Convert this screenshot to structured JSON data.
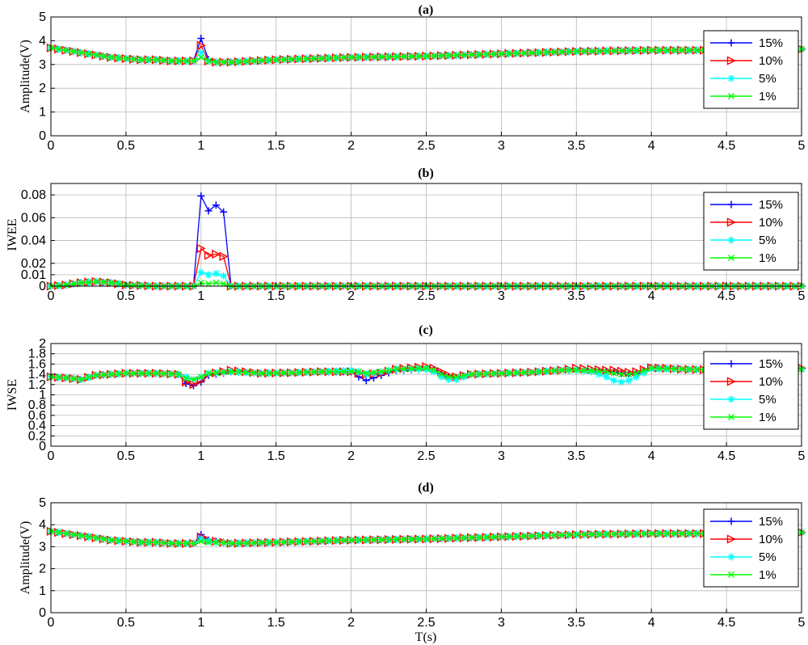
{
  "figure": {
    "xlabel": "T(s)",
    "xticks": [
      0,
      0.5,
      1,
      1.5,
      2,
      2.5,
      3,
      3.5,
      4,
      4.5,
      5
    ],
    "xtick_labels": [
      "0",
      "0.5",
      "1",
      "1.5",
      "2",
      "2.5",
      "3",
      "3.5",
      "4",
      "4.5",
      "5"
    ],
    "legend_labels": [
      "15%",
      "10%",
      "5%",
      "1%"
    ],
    "series_colors": [
      "#0000ff",
      "#ff0000",
      "#00ffff",
      "#00ff00"
    ],
    "series_markers": [
      "plus",
      "triangle-right",
      "asterisk",
      "x"
    ]
  },
  "chart_data": [
    {
      "type": "line",
      "title": "(a)",
      "xlabel": "",
      "ylabel": "Amplitude(V)",
      "xlim": [
        0,
        5
      ],
      "ylim": [
        0,
        5
      ],
      "yticks": [
        0,
        1,
        2,
        3,
        4,
        5
      ],
      "ytick_labels": [
        "0",
        "1",
        "2",
        "3",
        "4",
        "5"
      ],
      "grid": true,
      "legend": "top-right",
      "x": [
        0,
        0.1,
        0.2,
        0.3,
        0.4,
        0.5,
        0.6,
        0.7,
        0.8,
        0.9,
        0.95,
        1,
        1.05,
        1.1,
        1.2,
        1.5,
        2,
        2.5,
        3,
        3.5,
        4,
        4.5,
        5
      ],
      "series": [
        {
          "name": "15%",
          "values": [
            3.7,
            3.6,
            3.5,
            3.4,
            3.3,
            3.25,
            3.2,
            3.2,
            3.15,
            3.15,
            3.15,
            4.1,
            3.2,
            3.1,
            3.1,
            3.2,
            3.3,
            3.35,
            3.45,
            3.55,
            3.6,
            3.6,
            3.65
          ]
        },
        {
          "name": "10%",
          "values": [
            3.7,
            3.6,
            3.5,
            3.4,
            3.3,
            3.25,
            3.2,
            3.2,
            3.15,
            3.15,
            3.15,
            3.8,
            3.15,
            3.1,
            3.1,
            3.2,
            3.3,
            3.35,
            3.45,
            3.55,
            3.6,
            3.6,
            3.65
          ]
        },
        {
          "name": "5%",
          "values": [
            3.7,
            3.6,
            3.5,
            3.4,
            3.3,
            3.25,
            3.2,
            3.2,
            3.15,
            3.15,
            3.15,
            3.5,
            3.15,
            3.1,
            3.1,
            3.2,
            3.3,
            3.35,
            3.45,
            3.55,
            3.6,
            3.6,
            3.65
          ]
        },
        {
          "name": "1%",
          "values": [
            3.7,
            3.6,
            3.5,
            3.4,
            3.3,
            3.25,
            3.2,
            3.2,
            3.15,
            3.15,
            3.15,
            3.3,
            3.15,
            3.1,
            3.1,
            3.2,
            3.3,
            3.35,
            3.45,
            3.55,
            3.6,
            3.6,
            3.65
          ]
        }
      ]
    },
    {
      "type": "line",
      "title": "(b)",
      "xlabel": "",
      "ylabel": "IWEE",
      "xlim": [
        0,
        5
      ],
      "ylim": [
        0,
        0.09
      ],
      "yticks": [
        0,
        0.01,
        0.02,
        0.04,
        0.06,
        0.08
      ],
      "ytick_labels": [
        "0",
        "0.01",
        "0.02",
        "0.04",
        "0.06",
        "0.08"
      ],
      "grid": true,
      "legend": "top-right",
      "x": [
        0,
        0.1,
        0.2,
        0.3,
        0.4,
        0.5,
        0.7,
        0.9,
        0.95,
        1,
        1.05,
        1.1,
        1.15,
        1.2,
        1.25,
        1.5,
        2,
        2.5,
        3,
        3.5,
        4,
        4.5,
        5
      ],
      "series": [
        {
          "name": "15%",
          "values": [
            0,
            0.001,
            0.003,
            0.004,
            0.003,
            0.001,
            0,
            0,
            0,
            0.079,
            0.066,
            0.071,
            0.065,
            0,
            0,
            0,
            0,
            0,
            0,
            0,
            0,
            0,
            0
          ]
        },
        {
          "name": "10%",
          "values": [
            0,
            0.001,
            0.003,
            0.004,
            0.003,
            0.001,
            0,
            0,
            0,
            0.033,
            0.027,
            0.028,
            0.026,
            0,
            0,
            0,
            0,
            0,
            0,
            0,
            0,
            0,
            0
          ]
        },
        {
          "name": "5%",
          "values": [
            0,
            0.001,
            0.003,
            0.004,
            0.003,
            0.001,
            0,
            0,
            0,
            0.012,
            0.01,
            0.011,
            0.009,
            0,
            0,
            0,
            0,
            0,
            0,
            0,
            0,
            0,
            0
          ]
        },
        {
          "name": "1%",
          "values": [
            0,
            0.001,
            0.003,
            0.004,
            0.003,
            0.001,
            0,
            0,
            0,
            0.003,
            0.002,
            0.003,
            0.002,
            0,
            0,
            0,
            0,
            0,
            0,
            0,
            0,
            0,
            0
          ]
        }
      ]
    },
    {
      "type": "line",
      "title": "(c)",
      "xlabel": "",
      "ylabel": "IWSE",
      "xlim": [
        0,
        5
      ],
      "ylim": [
        0,
        2
      ],
      "yticks": [
        0,
        0.2,
        0.4,
        0.6,
        0.8,
        1,
        1.2,
        1.4,
        1.6,
        1.8,
        2
      ],
      "ytick_labels": [
        "0",
        "0.2",
        "0.4",
        "0.6",
        "0.8",
        "1",
        "1.2",
        "1.4",
        "1.6",
        "1.8",
        "2"
      ],
      "grid": true,
      "legend": "right",
      "x": [
        0,
        0.1,
        0.2,
        0.3,
        0.5,
        0.7,
        0.85,
        0.9,
        0.95,
        1.0,
        1.05,
        1.2,
        1.4,
        1.6,
        1.8,
        2.0,
        2.05,
        2.1,
        2.2,
        2.3,
        2.5,
        2.55,
        2.6,
        2.65,
        2.7,
        2.8,
        3.0,
        3.2,
        3.4,
        3.5,
        3.6,
        3.7,
        3.75,
        3.8,
        3.85,
        3.9,
        4.0,
        4.2,
        4.5,
        4.8,
        5.0
      ],
      "series": [
        {
          "name": "15%",
          "values": [
            1.35,
            1.33,
            1.3,
            1.38,
            1.42,
            1.42,
            1.4,
            1.22,
            1.18,
            1.25,
            1.38,
            1.45,
            1.42,
            1.43,
            1.45,
            1.45,
            1.35,
            1.28,
            1.38,
            1.48,
            1.5,
            1.48,
            1.4,
            1.35,
            1.33,
            1.4,
            1.42,
            1.44,
            1.48,
            1.48,
            1.47,
            1.45,
            1.45,
            1.42,
            1.4,
            1.42,
            1.52,
            1.5,
            1.48,
            1.48,
            1.5
          ]
        },
        {
          "name": "10%",
          "values": [
            1.35,
            1.33,
            1.3,
            1.38,
            1.42,
            1.42,
            1.4,
            1.25,
            1.2,
            1.28,
            1.4,
            1.48,
            1.42,
            1.43,
            1.45,
            1.45,
            1.42,
            1.4,
            1.42,
            1.5,
            1.55,
            1.52,
            1.45,
            1.38,
            1.35,
            1.4,
            1.42,
            1.44,
            1.48,
            1.52,
            1.5,
            1.48,
            1.48,
            1.46,
            1.44,
            1.45,
            1.53,
            1.5,
            1.48,
            1.48,
            1.52
          ]
        },
        {
          "name": "5%",
          "values": [
            1.35,
            1.33,
            1.3,
            1.38,
            1.42,
            1.42,
            1.4,
            1.35,
            1.3,
            1.35,
            1.42,
            1.45,
            1.42,
            1.43,
            1.45,
            1.48,
            1.45,
            1.4,
            1.45,
            1.5,
            1.5,
            1.45,
            1.35,
            1.3,
            1.3,
            1.4,
            1.42,
            1.44,
            1.48,
            1.48,
            1.45,
            1.35,
            1.28,
            1.25,
            1.28,
            1.35,
            1.5,
            1.5,
            1.48,
            1.48,
            1.5
          ]
        },
        {
          "name": "1%",
          "values": [
            1.35,
            1.33,
            1.3,
            1.38,
            1.42,
            1.42,
            1.4,
            1.32,
            1.3,
            1.35,
            1.42,
            1.45,
            1.42,
            1.43,
            1.45,
            1.45,
            1.45,
            1.42,
            1.45,
            1.5,
            1.52,
            1.48,
            1.4,
            1.35,
            1.35,
            1.4,
            1.42,
            1.44,
            1.48,
            1.48,
            1.47,
            1.45,
            1.42,
            1.4,
            1.4,
            1.42,
            1.52,
            1.5,
            1.48,
            1.48,
            1.5
          ]
        }
      ]
    },
    {
      "type": "line",
      "title": "(d)",
      "xlabel": "T(s)",
      "ylabel": "Amplitude(V)",
      "xlim": [
        0,
        5
      ],
      "ylim": [
        0,
        5
      ],
      "yticks": [
        0,
        1,
        2,
        3,
        4,
        5
      ],
      "ytick_labels": [
        "0",
        "1",
        "2",
        "3",
        "4",
        "5"
      ],
      "grid": true,
      "legend": "top-right",
      "x": [
        0,
        0.1,
        0.2,
        0.3,
        0.4,
        0.5,
        0.6,
        0.7,
        0.8,
        0.9,
        0.95,
        1,
        1.05,
        1.1,
        1.2,
        1.5,
        2,
        2.5,
        3,
        3.5,
        4,
        4.5,
        5
      ],
      "series": [
        {
          "name": "15%",
          "values": [
            3.7,
            3.6,
            3.5,
            3.4,
            3.3,
            3.25,
            3.2,
            3.2,
            3.15,
            3.15,
            3.15,
            3.55,
            3.3,
            3.25,
            3.15,
            3.2,
            3.3,
            3.35,
            3.45,
            3.55,
            3.6,
            3.6,
            3.65
          ]
        },
        {
          "name": "10%",
          "values": [
            3.7,
            3.6,
            3.5,
            3.4,
            3.3,
            3.25,
            3.2,
            3.2,
            3.15,
            3.15,
            3.15,
            3.45,
            3.3,
            3.25,
            3.15,
            3.2,
            3.3,
            3.35,
            3.45,
            3.55,
            3.6,
            3.6,
            3.65
          ]
        },
        {
          "name": "5%",
          "values": [
            3.7,
            3.6,
            3.5,
            3.4,
            3.3,
            3.25,
            3.2,
            3.2,
            3.15,
            3.15,
            3.15,
            3.35,
            3.25,
            3.2,
            3.15,
            3.2,
            3.3,
            3.35,
            3.45,
            3.55,
            3.6,
            3.6,
            3.65
          ]
        },
        {
          "name": "1%",
          "values": [
            3.7,
            3.6,
            3.5,
            3.4,
            3.3,
            3.25,
            3.2,
            3.2,
            3.15,
            3.15,
            3.15,
            3.25,
            3.2,
            3.2,
            3.15,
            3.2,
            3.3,
            3.35,
            3.45,
            3.55,
            3.6,
            3.6,
            3.65
          ]
        }
      ]
    }
  ]
}
